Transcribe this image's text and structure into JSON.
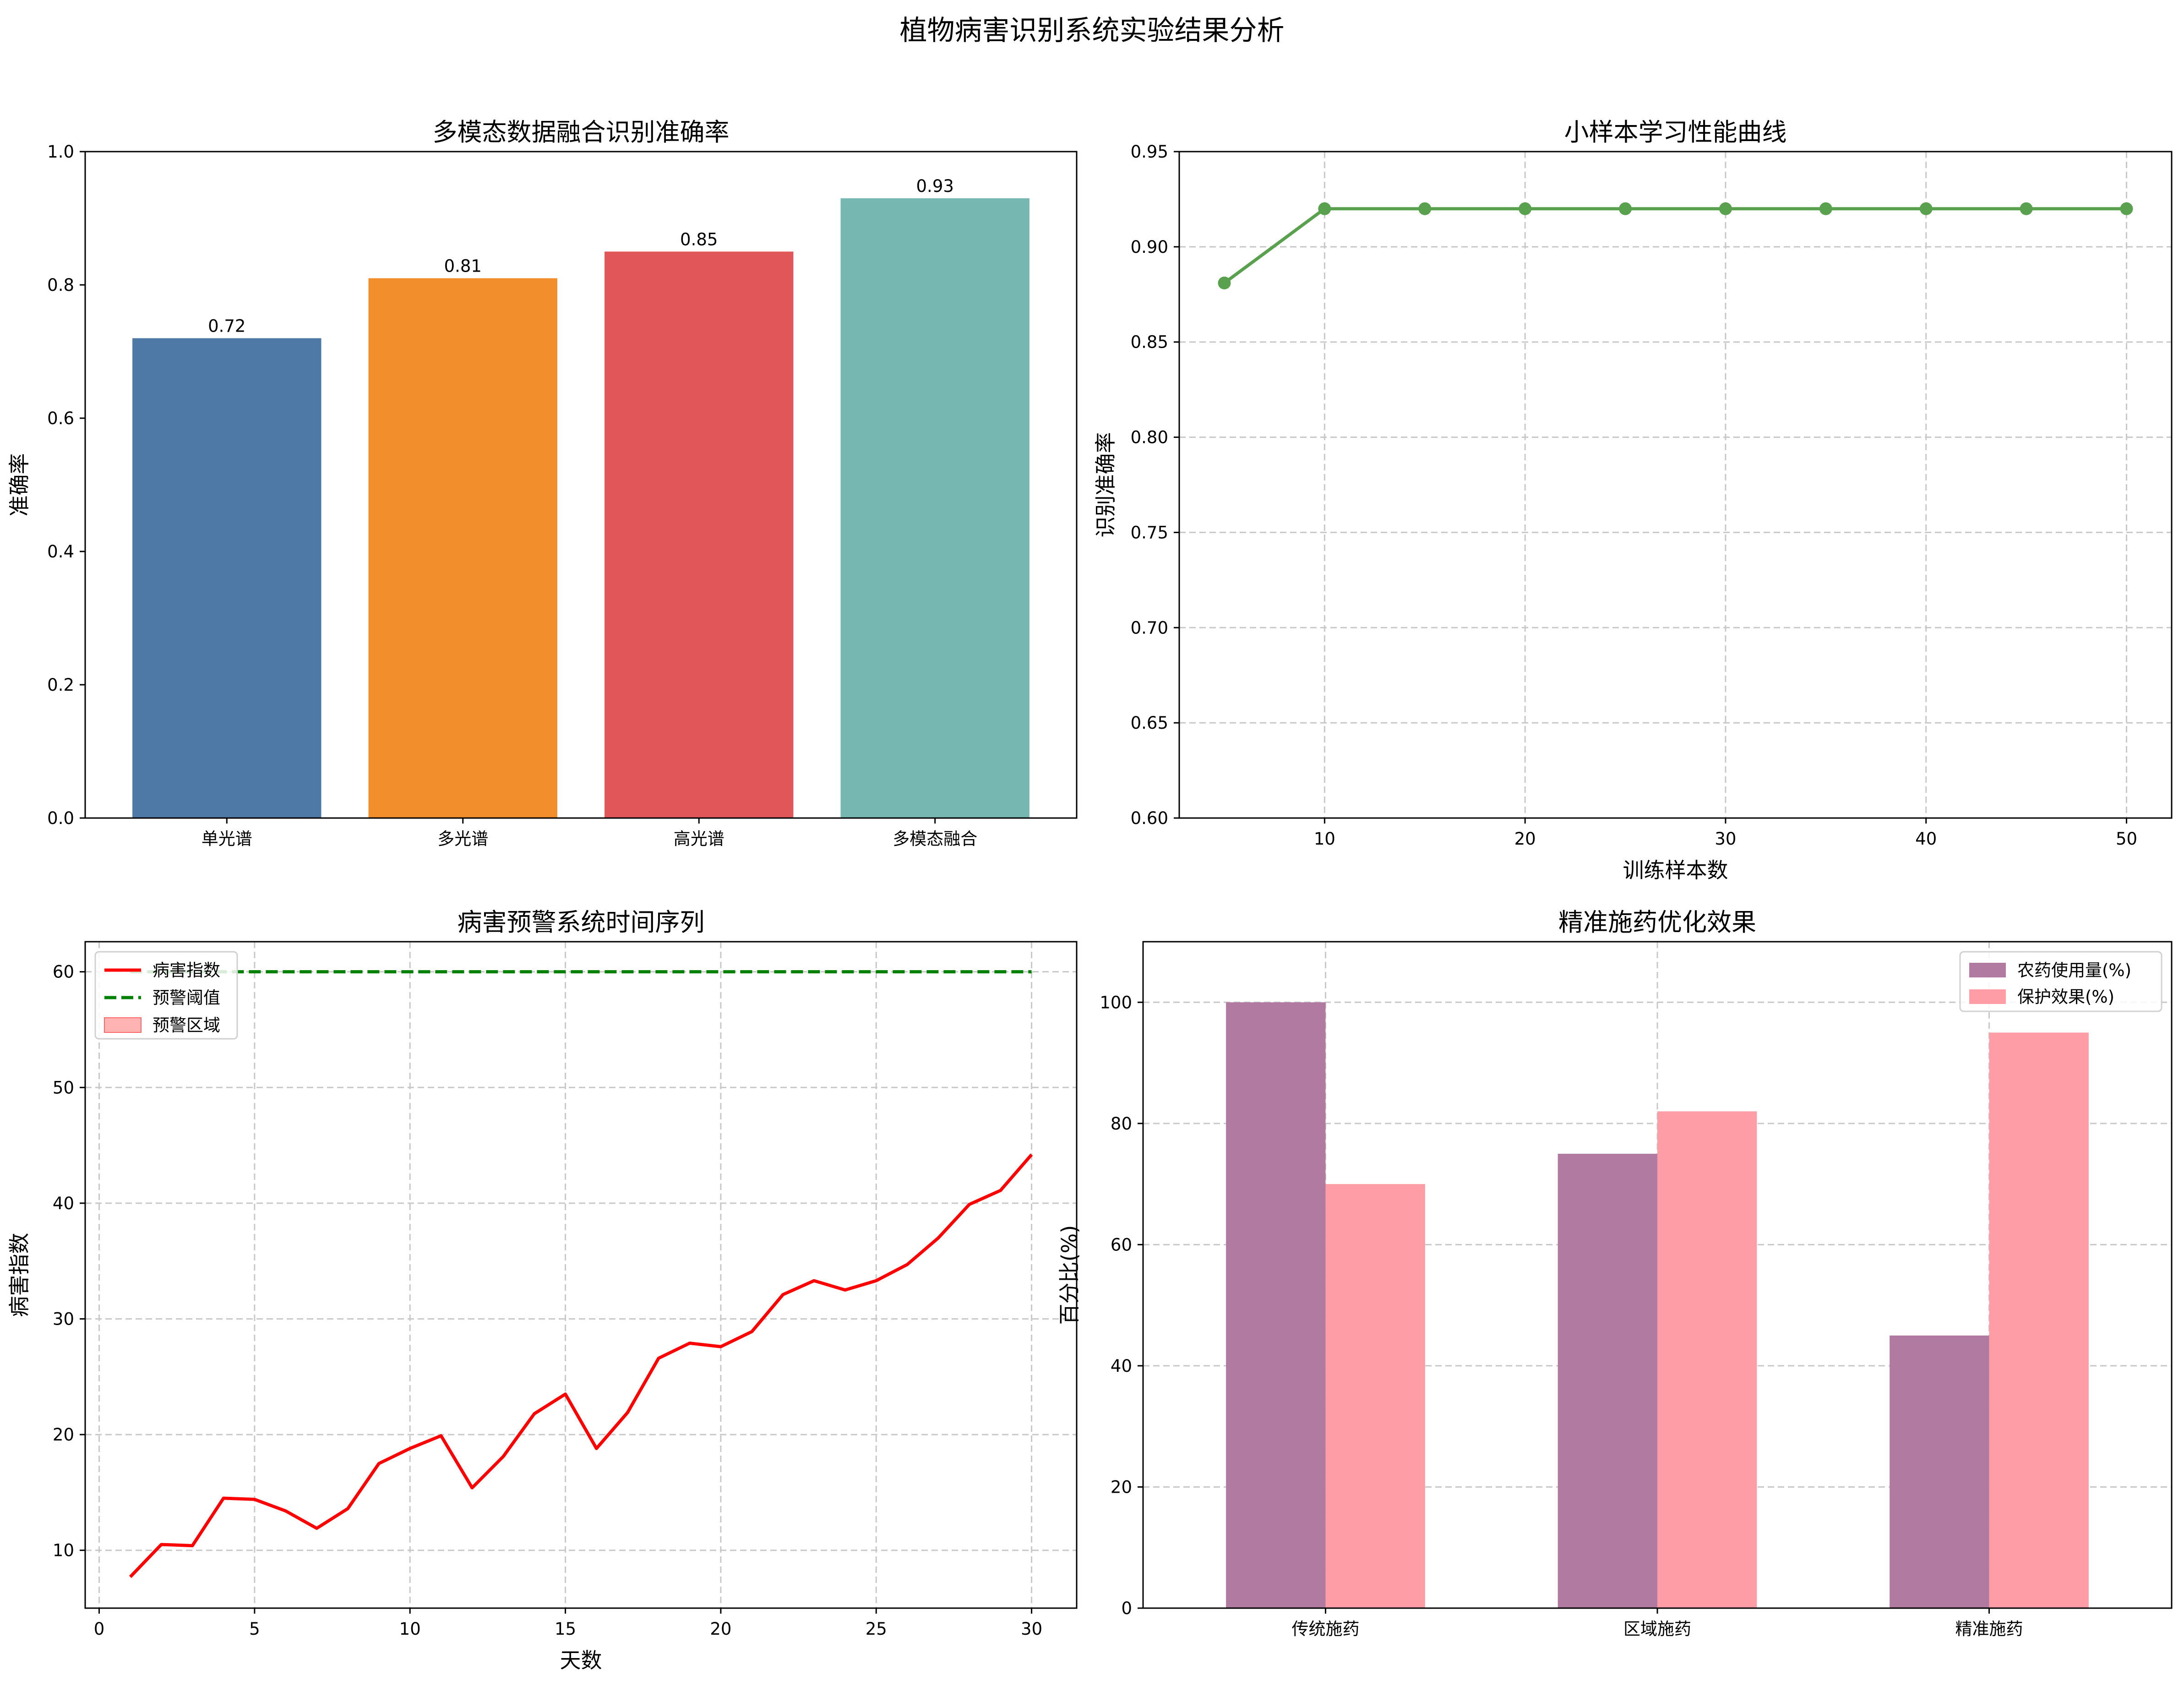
{
  "figure": {
    "title": "植物病害识别系统实验结果分析"
  },
  "chart_data": [
    {
      "type": "bar",
      "title": "多模态数据融合识别准确率",
      "xlabel": "",
      "ylabel": "准确率",
      "categories": [
        "单光谱",
        "多光谱",
        "高光谱",
        "多模态融合"
      ],
      "values": [
        0.72,
        0.81,
        0.85,
        0.93
      ],
      "value_labels": [
        "0.72",
        "0.81",
        "0.85",
        "0.93"
      ],
      "colors": [
        "#4e79a7",
        "#f28e2b",
        "#e15759",
        "#76b7b2"
      ],
      "ylim": [
        0,
        1.0
      ],
      "yticks": [
        "0.0",
        "0.2",
        "0.4",
        "0.6",
        "0.8",
        "1.0"
      ],
      "grid": false
    },
    {
      "type": "line",
      "title": "小样本学习性能曲线",
      "xlabel": "训练样本数",
      "ylabel": "识别准确率",
      "x": [
        5,
        10,
        15,
        20,
        25,
        30,
        35,
        40,
        45,
        50
      ],
      "y": [
        0.881,
        0.92,
        0.92,
        0.92,
        0.92,
        0.92,
        0.92,
        0.92,
        0.92,
        0.92
      ],
      "color": "#59a14f",
      "xlim": [
        2.75,
        52.25
      ],
      "ylim": [
        0.6,
        0.95
      ],
      "xticks": [
        "10",
        "20",
        "30",
        "40",
        "50"
      ],
      "yticks": [
        "0.60",
        "0.65",
        "0.70",
        "0.75",
        "0.80",
        "0.85",
        "0.90",
        "0.95"
      ],
      "grid": true
    },
    {
      "type": "line",
      "title": "病害预警系统时间序列",
      "xlabel": "天数",
      "ylabel": "病害指数",
      "x": [
        1,
        2,
        3,
        4,
        5,
        6,
        7,
        8,
        9,
        10,
        11,
        12,
        13,
        14,
        15,
        16,
        17,
        18,
        19,
        20,
        21,
        22,
        23,
        24,
        25,
        26,
        27,
        28,
        29,
        30
      ],
      "series": [
        {
          "name": "病害指数",
          "color": "#ff0000",
          "values": [
            7.7,
            10.5,
            10.4,
            14.5,
            14.4,
            13.4,
            11.9,
            13.6,
            17.5,
            18.8,
            19.9,
            15.4,
            18.1,
            21.8,
            23.5,
            18.8,
            21.9,
            26.6,
            27.9,
            27.6,
            28.9,
            32.1,
            33.3,
            32.5,
            33.3,
            34.7,
            37.0,
            39.9,
            41.1,
            44.2
          ]
        },
        {
          "name": "预警阈值",
          "color": "#008000",
          "style": "dashed",
          "values": [
            60,
            60,
            60,
            60,
            60,
            60,
            60,
            60,
            60,
            60,
            60,
            60,
            60,
            60,
            60,
            60,
            60,
            60,
            60,
            60,
            60,
            60,
            60,
            60,
            60,
            60,
            60,
            60,
            60,
            60
          ]
        }
      ],
      "legend": [
        "病害指数",
        "预警阈值",
        "预警区域"
      ],
      "legend_colors": [
        "#ff0000",
        "#008000",
        "#ffb3b3"
      ],
      "legend_position": "upper-left",
      "xlim": [
        -0.45,
        31.45
      ],
      "ylim": [
        5.0,
        62.6
      ],
      "xticks": [
        "0",
        "5",
        "10",
        "15",
        "20",
        "25",
        "30"
      ],
      "yticks": [
        "10",
        "20",
        "30",
        "40",
        "50",
        "60"
      ],
      "grid": true
    },
    {
      "type": "bar",
      "title": "精准施药优化效果",
      "xlabel": "",
      "ylabel": "百分比(%)",
      "categories": [
        "传统施药",
        "区域施药",
        "精准施药"
      ],
      "series": [
        {
          "name": "农药使用量(%)",
          "color": "#b07aa1",
          "values": [
            100,
            75,
            45
          ]
        },
        {
          "name": "保护效果(%)",
          "color": "#ff9da7",
          "values": [
            70,
            82,
            95
          ]
        }
      ],
      "legend_position": "upper-right",
      "ylim": [
        0,
        110
      ],
      "yticks": [
        "0",
        "20",
        "40",
        "60",
        "80",
        "100"
      ],
      "grid": true
    }
  ]
}
